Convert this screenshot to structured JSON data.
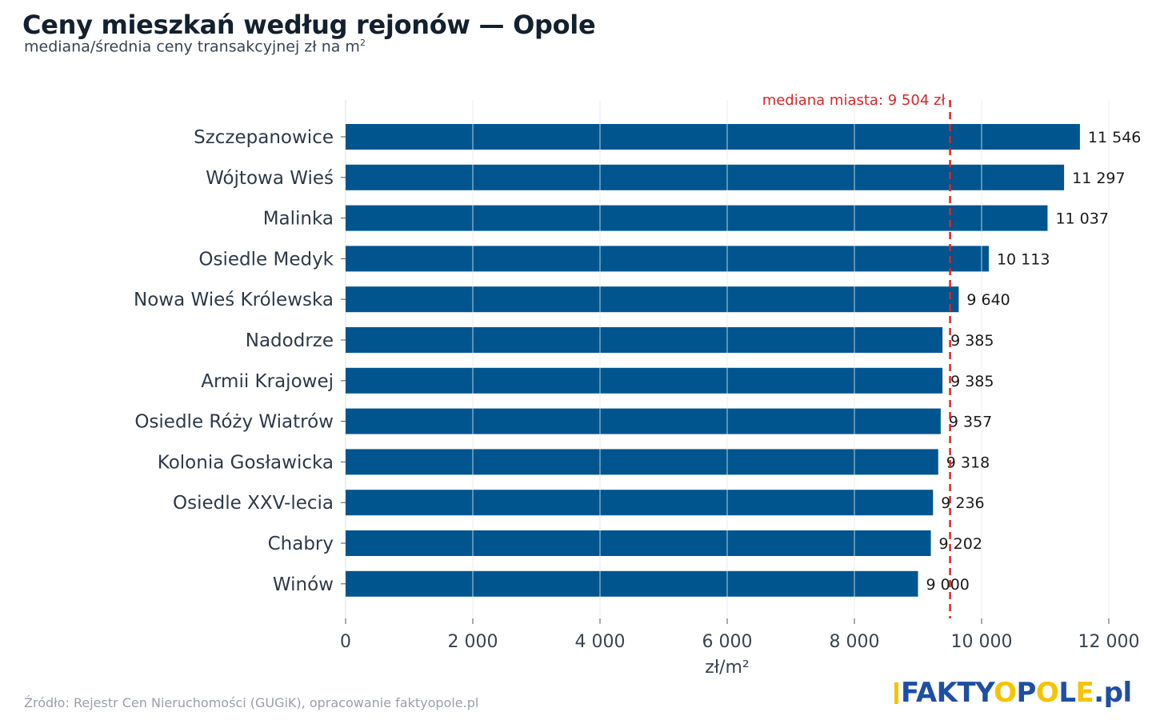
{
  "header": {
    "title": "Ceny mieszkań według rejonów — Opole",
    "subtitle_text": "mediana/średnia ceny transakcyjnej zł na m",
    "subtitle_sup": "2"
  },
  "footer": {
    "source": "Źródło: Rejestr Cen Nieruchomości (GUGiK), opracowanie faktyopole.pl"
  },
  "logo": {
    "part_faktyopole_1": "FAKTY",
    "part_o": "O",
    "part_p": "P",
    "part_o2": "O",
    "part_l": "L",
    "part_e": "E",
    "part_domain": ".pl"
  },
  "colors": {
    "bar": "#00558f",
    "median_line": "#d62728",
    "grid": "#e6e6e6"
  },
  "chart_data": {
    "type": "bar",
    "orientation": "horizontal",
    "categories": [
      "Szczepanowice",
      "Wójtowa Wieś",
      "Malinka",
      "Osiedle Medyk",
      "Nowa Wieś Królewska",
      "Nadodrze",
      "Armii Krajowej",
      "Osiedle Róży Wiatrów",
      "Kolonia Gosławicka",
      "Osiedle XXV-lecia",
      "Chabry",
      "Winów"
    ],
    "values": [
      11546,
      11297,
      11037,
      10113,
      9640,
      9385,
      9385,
      9357,
      9318,
      9236,
      9202,
      9000
    ],
    "value_labels": [
      "11 546",
      "11 297",
      "11 037",
      "10 113",
      "9 640",
      "9 385",
      "9 385",
      "9 357",
      "9 318",
      "9 236",
      "9 202",
      "9 000"
    ],
    "xlabel": "zł/m²",
    "xlim": [
      0,
      12000
    ],
    "xticks": [
      0,
      2000,
      4000,
      6000,
      8000,
      10000,
      12000
    ],
    "xtick_labels": [
      "0",
      "2 000",
      "4 000",
      "6 000",
      "8 000",
      "10 000",
      "12 000"
    ],
    "grid": "vertical",
    "reference_line": {
      "value": 9504,
      "label": "mediana miasta: 9 504 zł",
      "style": "dashed"
    }
  }
}
